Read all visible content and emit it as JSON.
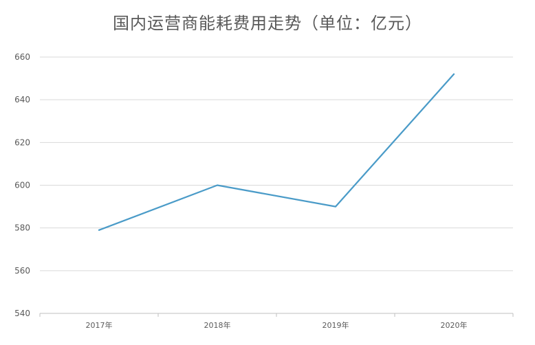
{
  "chart_data": {
    "type": "line",
    "title": "国内运营商能耗费用走势（单位：亿元）",
    "xlabel": "",
    "ylabel": "",
    "categories": [
      "2017年",
      "2018年",
      "2019年",
      "2020年"
    ],
    "series": [
      {
        "values": [
          579,
          600,
          590,
          652
        ],
        "color": "#4a9bc8"
      }
    ],
    "ylim": [
      540,
      660
    ],
    "yticks": [
      540,
      560,
      580,
      600,
      620,
      640,
      660
    ],
    "grid": true,
    "legend": "none"
  }
}
